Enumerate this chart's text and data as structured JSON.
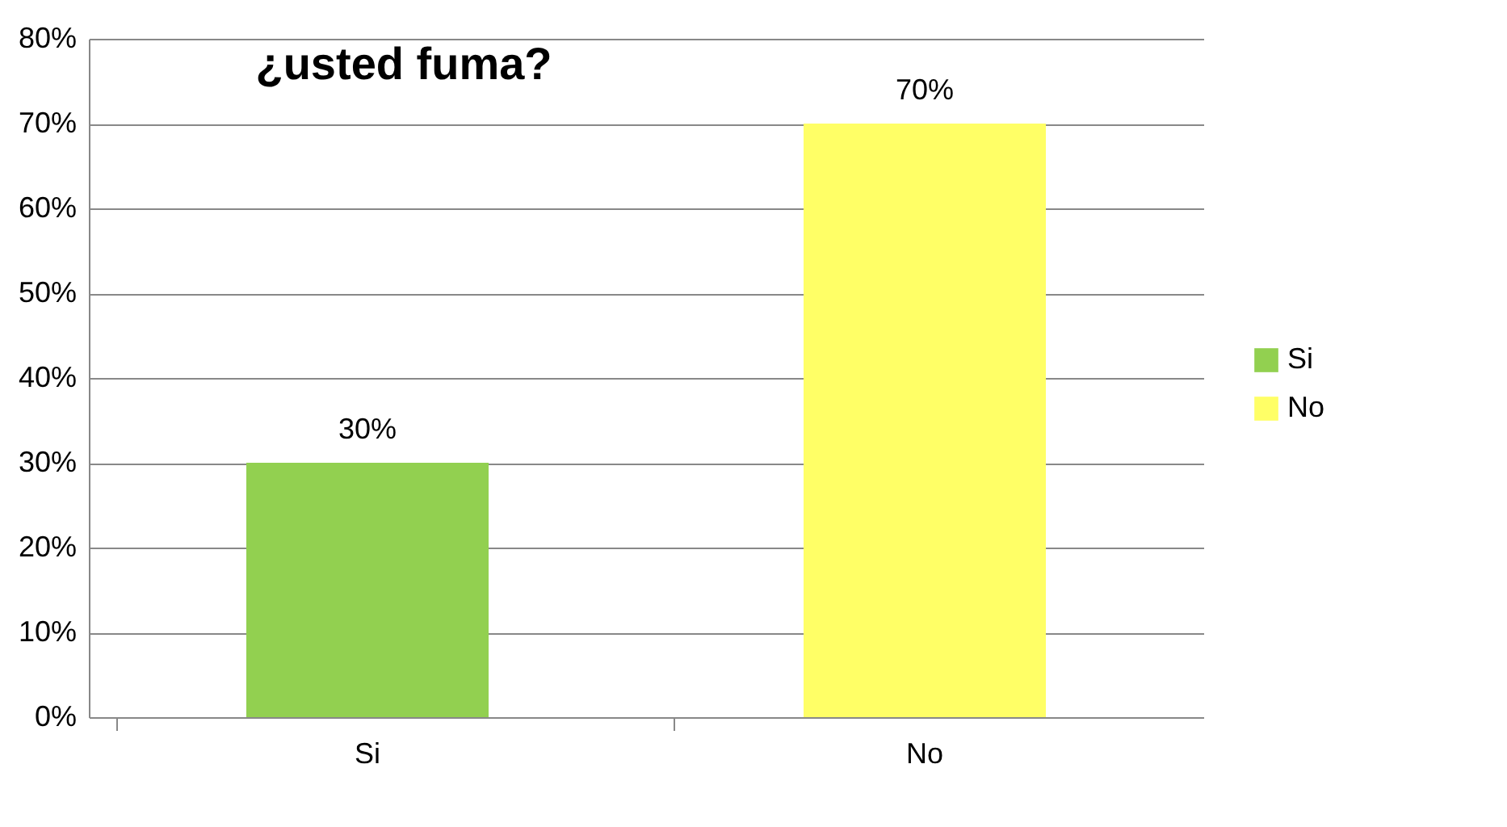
{
  "chart_data": {
    "type": "bar",
    "title": "¿usted fuma?",
    "categories": [
      "Si",
      "No"
    ],
    "series": [
      {
        "name": "Si",
        "color": "#92d050",
        "values": [
          30,
          null
        ],
        "value_labels": [
          "30%",
          null
        ]
      },
      {
        "name": "No",
        "color": "#ffff66",
        "values": [
          null,
          70
        ],
        "value_labels": [
          null,
          "70%"
        ]
      }
    ],
    "ylim": [
      0,
      80
    ],
    "yticks": [
      {
        "value": 0,
        "label": "0%"
      },
      {
        "value": 10,
        "label": "10%"
      },
      {
        "value": 20,
        "label": "20%"
      },
      {
        "value": 30,
        "label": "30%"
      },
      {
        "value": 40,
        "label": "40%"
      },
      {
        "value": 50,
        "label": "50%"
      },
      {
        "value": 60,
        "label": "60%"
      },
      {
        "value": 70,
        "label": "70%"
      },
      {
        "value": 80,
        "label": "80%"
      }
    ],
    "grid": "y",
    "legend": "right"
  }
}
